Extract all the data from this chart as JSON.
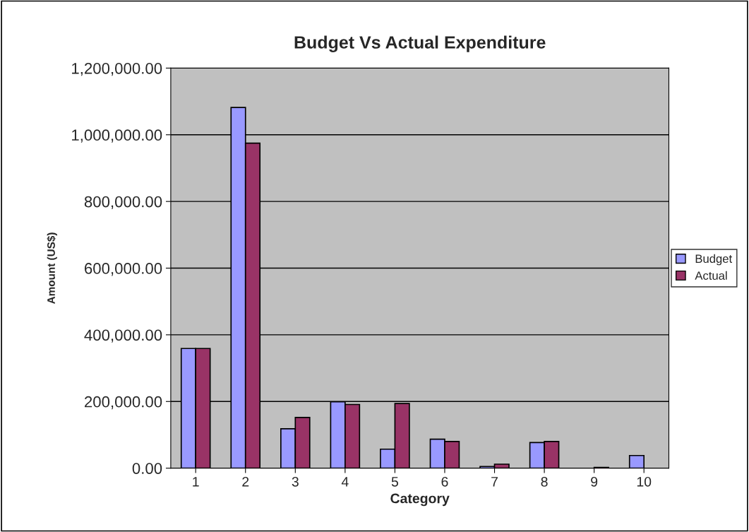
{
  "chart_data": {
    "type": "bar",
    "title": "Budget Vs Actual Expenditure",
    "xlabel": "Category",
    "ylabel": "Amount (US$)",
    "categories": [
      "1",
      "2",
      "3",
      "4",
      "5",
      "6",
      "7",
      "8",
      "9",
      "10"
    ],
    "series": [
      {
        "name": "Budget",
        "color": "#9999ff",
        "values": [
          359000,
          1082000,
          118000,
          199000,
          57000,
          87000,
          5000,
          77000,
          null,
          38000
        ]
      },
      {
        "name": "Actual",
        "color": "#993366",
        "values": [
          359000,
          975000,
          152000,
          191000,
          194000,
          80000,
          12000,
          80000,
          2000,
          null
        ]
      }
    ],
    "ylim": [
      0,
      1200000
    ],
    "yticks": [
      {
        "value": 0,
        "label": "0.00"
      },
      {
        "value": 200000,
        "label": "200,000.00"
      },
      {
        "value": 400000,
        "label": "400,000.00"
      },
      {
        "value": 600000,
        "label": "600,000.00"
      },
      {
        "value": 800000,
        "label": "800,000.00"
      },
      {
        "value": 1000000,
        "label": "1,000,000.00"
      },
      {
        "value": 1200000,
        "label": "1,200,000.00"
      }
    ],
    "grid": "y",
    "legend": "right"
  }
}
